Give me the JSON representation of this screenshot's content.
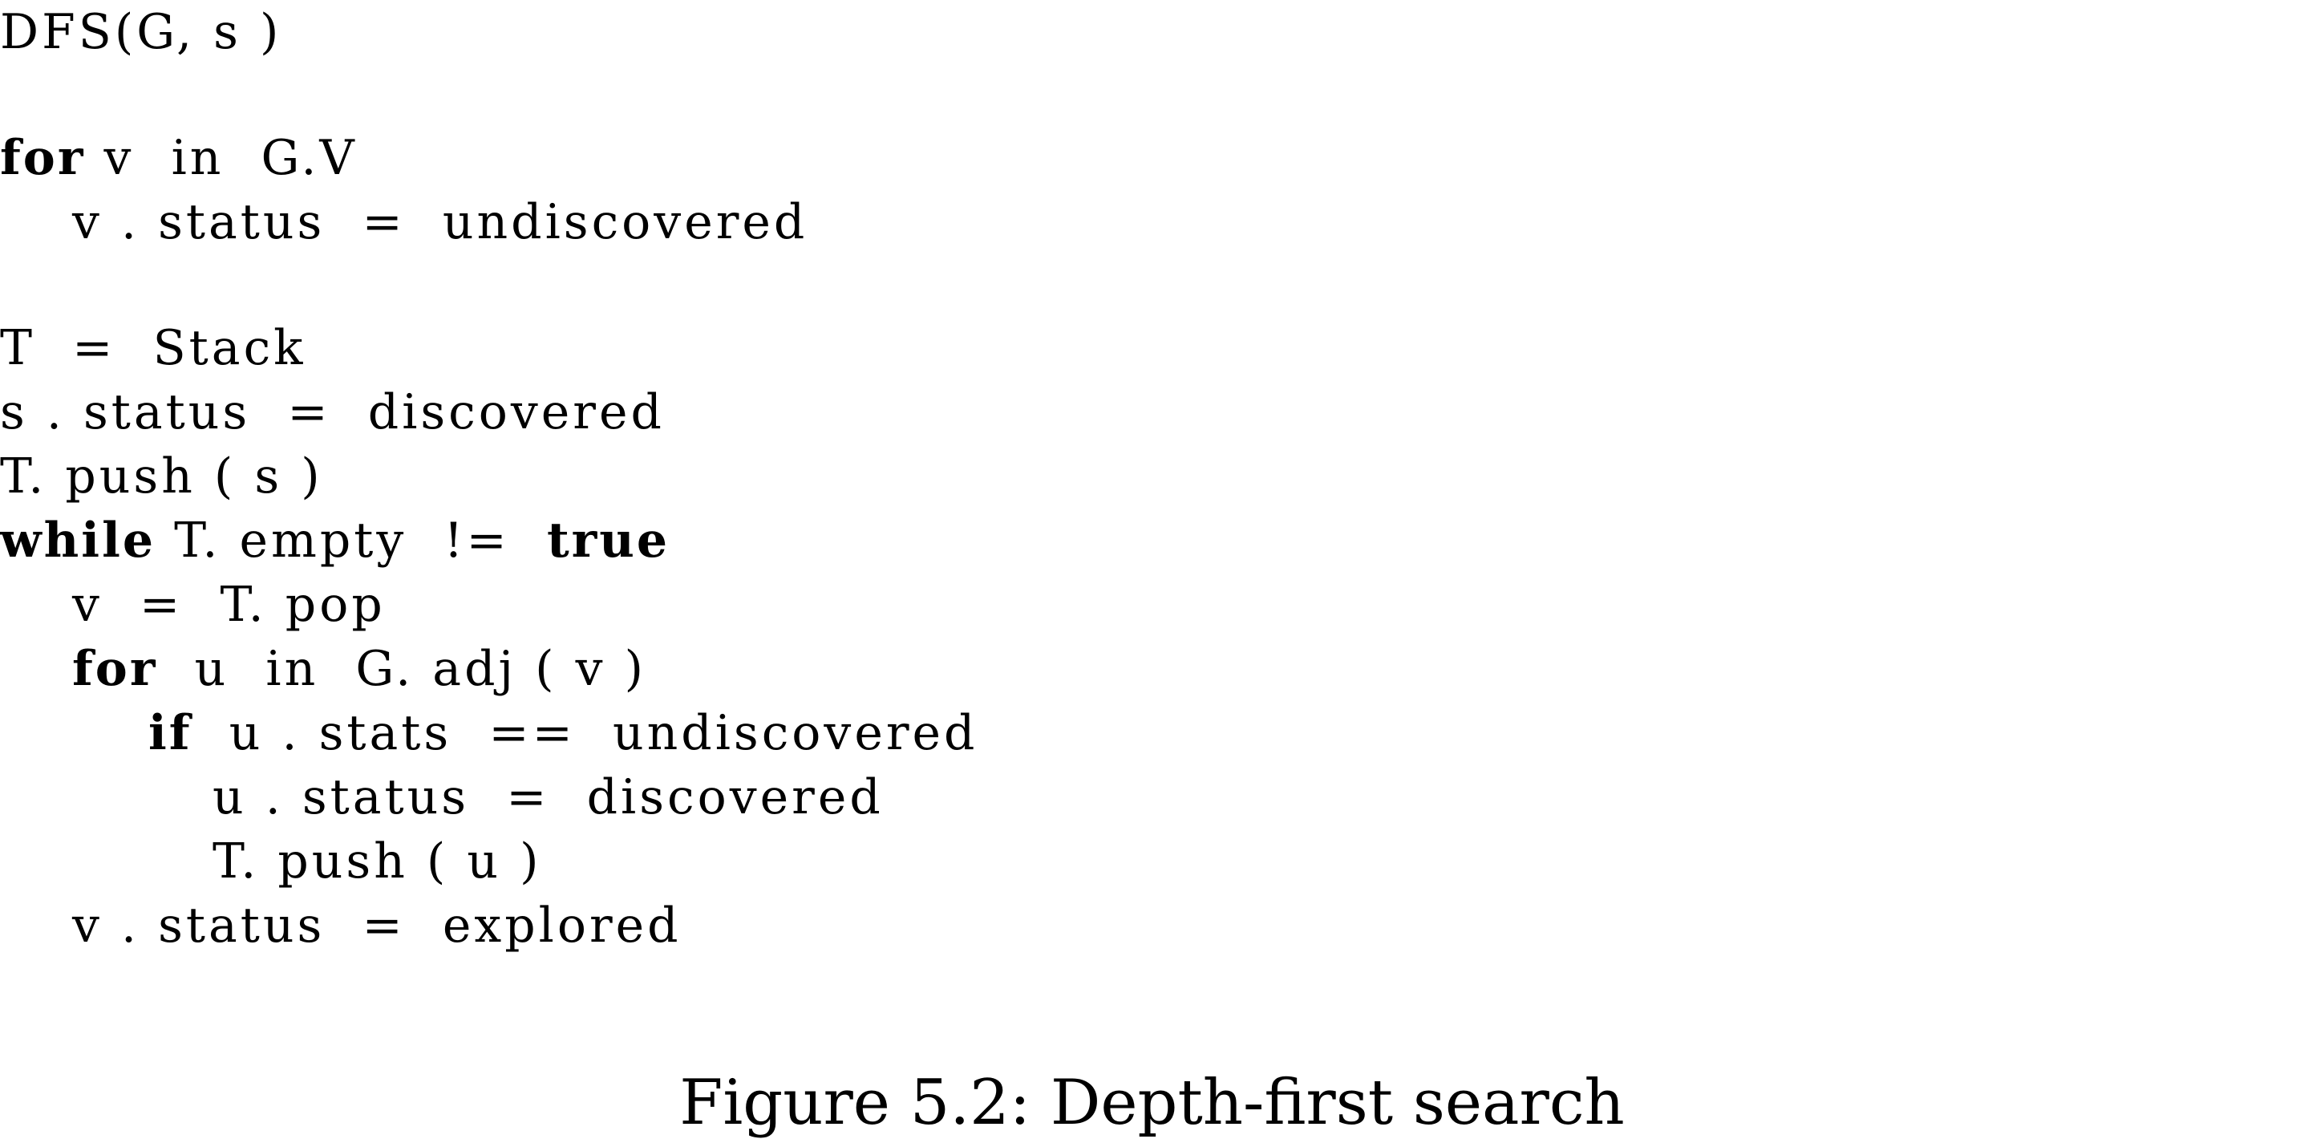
{
  "code": {
    "header": "DFS(G, s )",
    "lines": [
      {
        "keyword": "for",
        "text": " v  in  G.V"
      },
      {
        "keyword": "",
        "text": "v . status  =  undiscovered"
      },
      {
        "keyword": "",
        "text": "T  =  Stack"
      },
      {
        "keyword": "",
        "text": "s . status  =  discovered"
      },
      {
        "keyword": "",
        "text": "T. push ( s )"
      },
      {
        "keyword": "while",
        "text": " T. empty  !=  ",
        "keyword2": "true"
      },
      {
        "keyword": "",
        "text": "v  =  T. pop"
      },
      {
        "keyword": "for",
        "text": "  u  in  G. adj ( v )"
      },
      {
        "keyword": "if",
        "text": "  u . stats  ==  undiscovered"
      },
      {
        "keyword": "",
        "text": "u . status  =  discovered"
      },
      {
        "keyword": "",
        "text": "T. push ( u )"
      },
      {
        "keyword": "",
        "text": "v . status  =  explored"
      }
    ]
  },
  "caption": "Figure 5.2: Depth-first search"
}
